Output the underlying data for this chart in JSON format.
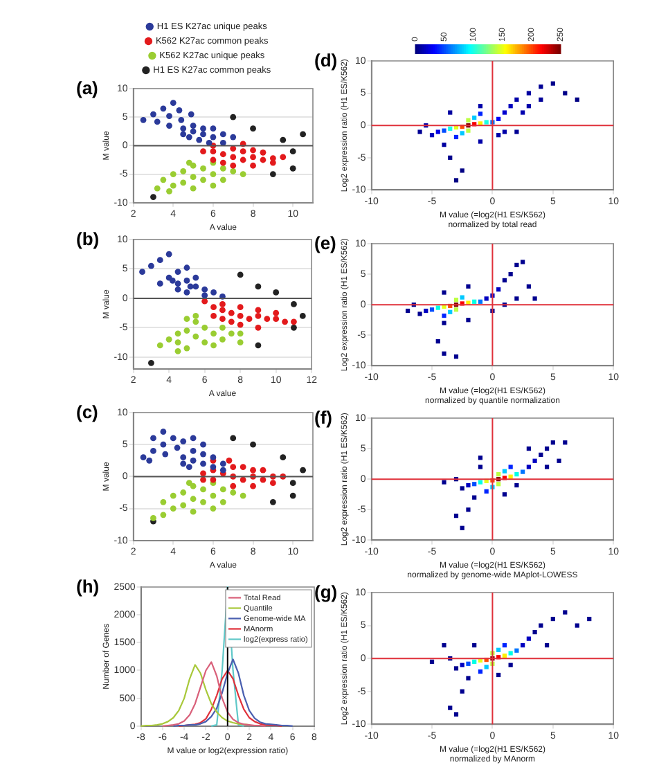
{
  "chart_data": [
    {
      "type": "scatter",
      "title": "(a)",
      "xlabel": "A value",
      "ylabel": "M value",
      "xlim": [
        2,
        11
      ],
      "xticks": [
        2,
        4,
        6,
        8,
        10
      ],
      "ylim": [
        -10,
        10
      ],
      "yticks": [
        -10,
        -5,
        0,
        5,
        10
      ],
      "grid": "y",
      "legend": "top",
      "marker": "circle",
      "ref_lines": [
        {
          "axis": "y",
          "value": 0,
          "color": "#555555"
        }
      ],
      "series": [
        {
          "name": "H1 ES K27ac unique peaks",
          "color": "#2b3a9a",
          "x": [
            2.5,
            3,
            3.5,
            4,
            3.2,
            3.8,
            4.3,
            3.8,
            4.4,
            4.9,
            4.5,
            5,
            5.5,
            5,
            5.5,
            6,
            4.8,
            5.8,
            6,
            6.5,
            6.5,
            5.3,
            7,
            4.5
          ],
          "values": [
            4.5,
            5.5,
            6.5,
            7.5,
            4.2,
            5.2,
            6.2,
            3.5,
            4.5,
            5.5,
            3,
            2.5,
            2,
            3.5,
            3,
            1.5,
            1.5,
            0.5,
            3,
            2,
            0.5,
            1,
            1.5,
            2
          ]
        },
        {
          "name": "K562 K27ac common peaks",
          "color": "#e31a1c",
          "x": [
            7,
            6.5,
            7.5,
            6,
            8,
            8.5,
            9,
            9.5,
            6,
            7,
            8,
            7,
            8,
            5.5,
            9,
            6.5,
            7.5,
            8.5,
            6,
            7.5
          ],
          "values": [
            -2,
            -1.5,
            -2.5,
            -1,
            -2,
            -2.5,
            -2.2,
            -2,
            -2.5,
            -3.5,
            -3.5,
            -0.5,
            -0.8,
            -1,
            -3,
            -3,
            -1,
            -1.2,
            0,
            0.3
          ]
        },
        {
          "name": "K562 K27ac unique peaks",
          "color": "#9acd32",
          "x": [
            5.5,
            5,
            6,
            6.5,
            4.5,
            5,
            5.5,
            6.5,
            7,
            4,
            4.5,
            5,
            3.5,
            4,
            3.8,
            6,
            4.8,
            7.5,
            6,
            3.2
          ],
          "values": [
            -4,
            -3.5,
            -5,
            -4,
            -4.5,
            -5.5,
            -6,
            -6,
            -4.5,
            -5,
            -6.5,
            -7.5,
            -6,
            -7,
            -8,
            -3,
            -3,
            -5,
            -7,
            -7.5
          ]
        },
        {
          "name": "H1 ES K27ac common peaks",
          "color": "#222222",
          "x": [
            9.5,
            10,
            10.5,
            8,
            9,
            3,
            7,
            10
          ],
          "values": [
            1,
            -1,
            2,
            3,
            -5,
            -9,
            5,
            -4
          ]
        }
      ]
    },
    {
      "type": "scatter",
      "title": "(d)",
      "xlabel": "M value (=log2(H1 ES/K562)\nnormalized by total read",
      "ylabel": "Log2 expression ratio (H1 ES/K562)",
      "xlim": [
        -10,
        10
      ],
      "xticks": [
        -10,
        -5,
        0,
        5,
        10
      ],
      "ylim": [
        -10,
        10
      ],
      "yticks": [
        -10,
        -5,
        0,
        5,
        10
      ],
      "marker": "square",
      "clim": [
        0,
        250
      ],
      "cticks": [
        0,
        50,
        100,
        150,
        200,
        250
      ],
      "ref_lines": [
        {
          "axis": "x",
          "value": 0,
          "color": "#e0303a"
        },
        {
          "axis": "y",
          "value": 0,
          "color": "#e0303a"
        }
      ],
      "series": [
        {
          "x": [
            7,
            -2.5,
            -3,
            -3.5,
            -4,
            -6,
            -5.5,
            -5,
            -4.5,
            -4,
            -3.5,
            -3,
            -2.5,
            -1,
            -1,
            1,
            2,
            0.5,
            -3.5,
            -1,
            3,
            4,
            5,
            6,
            4,
            3,
            2.5,
            2,
            1.5,
            1,
            0.5,
            0,
            -0.5,
            -1,
            -1.5,
            -2,
            -2,
            -2.5,
            -3,
            -1.5,
            -2
          ],
          "values": [
            4,
            -7,
            -8.5,
            -5,
            -3,
            -1,
            0,
            -1.5,
            -1,
            -0.8,
            -0.5,
            -1.8,
            -1.2,
            -2.5,
            3,
            -1,
            -1,
            -1.5,
            2,
            1.8,
            5,
            6,
            6.5,
            5,
            4,
            3,
            2,
            4,
            3,
            2,
            1,
            0.5,
            0.5,
            0.3,
            1.2,
            0.8,
            -0.8,
            -0.2,
            -0.3,
            0.2,
            0
          ],
          "cvalues": [
            1,
            1,
            1,
            3,
            8,
            5,
            10,
            15,
            25,
            50,
            100,
            40,
            80,
            10,
            10,
            10,
            5,
            10,
            8,
            40,
            8,
            5,
            3,
            2,
            6,
            10,
            12,
            10,
            15,
            20,
            30,
            60,
            100,
            160,
            80,
            140,
            140,
            200,
            150,
            220,
            250
          ]
        }
      ]
    },
    {
      "type": "scatter",
      "title": "(b)",
      "xlabel": "A value",
      "ylabel": "M value",
      "xlim": [
        2,
        12
      ],
      "xticks": [
        2,
        4,
        6,
        8,
        10,
        12
      ],
      "ylim": [
        -12,
        10
      ],
      "yticks": [
        -10,
        -5,
        0,
        5,
        10
      ],
      "grid": "y",
      "marker": "circle",
      "ref_lines": [
        {
          "axis": "y",
          "value": 0,
          "color": "#555555"
        }
      ],
      "series": [
        {
          "color": "#2b3a9a",
          "x": [
            2.5,
            3,
            3.5,
            4,
            3.5,
            4,
            4.5,
            5,
            4.5,
            5,
            5.5,
            4.5,
            5,
            5.5,
            6,
            6,
            6.5,
            5.2,
            4.2,
            7
          ],
          "values": [
            4.5,
            5.5,
            6.5,
            7.5,
            2.5,
            3.5,
            4.5,
            5.2,
            2.5,
            3,
            2,
            1.5,
            1,
            3.5,
            1.5,
            0.5,
            1,
            2,
            3,
            0.3
          ]
        },
        {
          "color": "#e31a1c",
          "x": [
            8,
            7.5,
            8.5,
            7,
            9,
            9.5,
            10,
            10.5,
            6.5,
            7,
            8,
            9,
            8,
            9,
            6.5,
            7.5,
            10,
            11,
            6,
            7
          ],
          "values": [
            -3,
            -2.5,
            -3.5,
            -2,
            -3,
            -3.5,
            -3.5,
            -4,
            -1.5,
            -3.5,
            -4.5,
            -5,
            -1.5,
            -2,
            -3,
            -4,
            -2.5,
            -4,
            -0.5,
            -1
          ]
        },
        {
          "color": "#9acd32",
          "x": [
            6,
            5.5,
            6.5,
            7,
            5,
            5.5,
            6,
            7,
            7.5,
            4.5,
            4.5,
            5,
            4,
            4.5,
            5.5,
            8,
            6.5,
            3.5,
            8,
            5
          ],
          "values": [
            -5,
            -4,
            -6,
            -5,
            -5.5,
            -6.5,
            -7.5,
            -7,
            -6,
            -6,
            -7.5,
            -8.5,
            -7,
            -9,
            -3,
            -6,
            -8,
            -8,
            -7.5,
            -3.5
          ]
        },
        {
          "color": "#222222",
          "x": [
            10,
            11,
            11.5,
            9,
            9,
            3,
            8,
            11
          ],
          "values": [
            1,
            -1,
            -3,
            2,
            -8,
            -11,
            4,
            -5
          ]
        }
      ]
    },
    {
      "type": "scatter",
      "title": "(e)",
      "xlabel": "M value (=log2(H1 ES/K562)\nnormalized by quantile normalization",
      "ylabel": "Log2 expression ratio (H1 ES/K562)",
      "xlim": [
        -10,
        10
      ],
      "xticks": [
        -10,
        -5,
        0,
        5,
        10
      ],
      "ylim": [
        -10,
        10
      ],
      "yticks": [
        -10,
        -5,
        0,
        5,
        10
      ],
      "marker": "square",
      "ref_lines": [
        {
          "axis": "x",
          "value": 0,
          "color": "#e0303a"
        },
        {
          "axis": "y",
          "value": 0,
          "color": "#e0303a"
        }
      ],
      "series": [
        {
          "x": [
            3.5,
            2.5,
            -4,
            -4,
            -3,
            -4.5,
            -4,
            -2,
            -4,
            -7,
            -6.5,
            -6,
            -5.5,
            -5,
            -4.5,
            -4,
            -3.5,
            -2,
            0,
            1,
            2,
            3,
            2,
            1.5,
            1,
            0.5,
            0,
            -0.5,
            -1,
            -1.5,
            -2,
            -2.5,
            -3,
            -3,
            -3.5,
            -2.5,
            -3
          ],
          "values": [
            1,
            7,
            2,
            -8,
            -8.5,
            -6,
            -3,
            -2.5,
            -1.8,
            -1,
            0,
            -1.5,
            -1,
            -0.8,
            -0.5,
            -0.3,
            -1.2,
            3,
            -1,
            0,
            1,
            3,
            6.5,
            5,
            4,
            2.5,
            1.5,
            1,
            0.5,
            0.5,
            0.3,
            1.2,
            0.8,
            -0.8,
            -0.2,
            0.2,
            0
          ],
          "colors": [
            "#00008f",
            "#00008f",
            "#00008f",
            "#00008f",
            "#00008f",
            "#00008f",
            "#00008f",
            "#00008f",
            "#0024ff",
            "#00008f",
            "#00008f",
            "#00008f",
            "#0000c0",
            "#004dff",
            "#00ffe6",
            "#e6ff1a",
            "#00c8ff",
            "#00008f",
            "#00008f",
            "#00008f",
            "#00008f",
            "#00008f",
            "#00008f",
            "#00008f",
            "#00008f",
            "#0000c0",
            "#0000c0",
            "#0000c0",
            "#0075ff",
            "#00ffe6",
            "#fff000",
            "#00c8ff",
            "#bdff42",
            "#bdff42",
            "#ff4d00",
            "#fa0000",
            "#800000"
          ]
        }
      ]
    },
    {
      "type": "scatter",
      "title": "(c)",
      "xlabel": "A value",
      "ylabel": "M value",
      "xlim": [
        2,
        11
      ],
      "xticks": [
        2,
        4,
        6,
        8,
        10
      ],
      "ylim": [
        -10,
        10
      ],
      "yticks": [
        -10,
        -5,
        0,
        5,
        10
      ],
      "grid": "y",
      "marker": "circle",
      "ref_lines": [
        {
          "axis": "y",
          "value": 0,
          "color": "#555555"
        }
      ],
      "series": [
        {
          "color": "#2b3a9a",
          "x": [
            2.5,
            3,
            3.5,
            4,
            3,
            3.5,
            2.8,
            3.6,
            4.2,
            4.5,
            4.5,
            5,
            5.5,
            5,
            5.5,
            6,
            4.8,
            6,
            6.5,
            5.5,
            5,
            6.5,
            4.5
          ],
          "values": [
            3,
            4,
            5,
            6,
            6,
            7,
            2.5,
            3.5,
            4.5,
            5.5,
            3,
            2.5,
            2,
            4,
            3.5,
            1.5,
            1.5,
            3,
            2,
            5,
            6,
            1,
            2
          ]
        },
        {
          "color": "#e31a1c",
          "x": [
            7,
            6.5,
            7.5,
            6,
            8,
            8.5,
            9,
            9.5,
            6,
            7,
            8,
            7,
            8,
            5.5,
            9,
            6.8,
            7.5,
            8.5,
            5.5,
            6
          ],
          "values": [
            0,
            0.5,
            -0.5,
            1,
            0,
            -0.5,
            0,
            0,
            -0.5,
            -1.5,
            -1.5,
            1.5,
            1,
            0.5,
            -1,
            2.5,
            1.5,
            1,
            -0.5,
            2.5
          ]
        },
        {
          "color": "#9acd32",
          "x": [
            5.5,
            5,
            6,
            6.5,
            4.5,
            5,
            5.5,
            6.5,
            7,
            4,
            4.5,
            5,
            3.5,
            4,
            3.5,
            6,
            7.5,
            6,
            3,
            4.8
          ],
          "values": [
            -2,
            -1.5,
            -3,
            -2,
            -2.5,
            -3.5,
            -4,
            -4,
            -2.5,
            -3,
            -4.5,
            -5.5,
            -4,
            -5,
            -6,
            -1,
            -3,
            -5,
            -6.5,
            -1
          ]
        },
        {
          "color": "#222222",
          "x": [
            9.5,
            10,
            10.5,
            8,
            9,
            3,
            7,
            10
          ],
          "values": [
            3,
            -1,
            1,
            5,
            -4,
            -7,
            6,
            -3
          ]
        }
      ]
    },
    {
      "type": "scatter",
      "title": "(f)",
      "xlabel": "M value (=log2(H1 ES/K562)\nnormalized by genome-wide MAplot-LOWESS",
      "ylabel": "Log2 expression ratio (H1 ES/K562)",
      "xlim": [
        -10,
        10
      ],
      "xticks": [
        -10,
        -5,
        0,
        5,
        10
      ],
      "ylim": [
        -10,
        10
      ],
      "yticks": [
        -10,
        -5,
        0,
        5,
        10
      ],
      "marker": "square",
      "ref_lines": [
        {
          "axis": "x",
          "value": 0,
          "color": "#e0303a"
        },
        {
          "axis": "y",
          "value": 0,
          "color": "#e0303a"
        }
      ],
      "series": [
        {
          "x": [
            -1,
            5.5,
            6,
            -2.5,
            -3,
            -2,
            -1.5,
            -1,
            1,
            2,
            4.5,
            3,
            5,
            4.5,
            4,
            3.5,
            -4,
            -3,
            -2.5,
            -2,
            3,
            -0.5,
            1.5,
            -1.5,
            2.5,
            0,
            1,
            -1,
            2,
            0.5,
            0.5,
            -0.5,
            1.5,
            0,
            1,
            0.5
          ],
          "values": [
            3.5,
            3,
            6,
            -8,
            -6,
            -5,
            -3,
            2,
            -2.5,
            -1,
            2,
            5,
            6,
            5,
            4,
            3,
            -0.5,
            0,
            -1.5,
            -1,
            2,
            -2,
            2,
            -0.8,
            1.2,
            -1.3,
            1.3,
            -0.5,
            0.8,
            -0.8,
            0.8,
            -0.3,
            0.4,
            -0.2,
            0.2,
            0
          ],
          "colors": [
            "#00008f",
            "#00008f",
            "#00008f",
            "#00008f",
            "#00008f",
            "#00008f",
            "#00008f",
            "#00008f",
            "#00008f",
            "#00008f",
            "#00008f",
            "#00008f",
            "#00008f",
            "#00008f",
            "#00008f",
            "#0000c0",
            "#00008f",
            "#00008f",
            "#00008f",
            "#0000c0",
            "#0000c0",
            "#0024ff",
            "#0024ff",
            "#004dff",
            "#0075ff",
            "#00c8ff",
            "#00c8ff",
            "#00ffe6",
            "#00ffe6",
            "#bdff42",
            "#bdff42",
            "#e6ff1a",
            "#fff000",
            "#ff4d00",
            "#fa0000",
            "#800000"
          ]
        }
      ]
    },
    {
      "type": "line",
      "title": "(h)",
      "xlabel": "M value or log2(expression ratio)",
      "ylabel": "Number of Genes",
      "xlim": [
        -8,
        8
      ],
      "xticks": [
        -8,
        -6,
        -4,
        -2,
        0,
        2,
        4,
        6,
        8
      ],
      "ylim": [
        0,
        2500
      ],
      "yticks": [
        0,
        500,
        1000,
        1500,
        2000,
        2500
      ],
      "legend": "top right",
      "marker": "none",
      "line_style": "solid",
      "ref_lines": [
        {
          "axis": "x",
          "value": 0,
          "color": "#000000"
        }
      ],
      "x": [
        -8,
        -7.5,
        -7,
        -6.5,
        -6,
        -5.5,
        -5,
        -4.5,
        -4,
        -3.5,
        -3,
        -2.5,
        -2,
        -1.5,
        -1,
        -0.5,
        0,
        0.5,
        1,
        1.5,
        2,
        2.5,
        3,
        3.5,
        4,
        4.5,
        5,
        5.5,
        6
      ],
      "series": [
        {
          "name": "Total Read",
          "color": "#d9607a",
          "values": [
            null,
            null,
            null,
            null,
            0,
            10,
            20,
            40,
            90,
            200,
            400,
            700,
            1000,
            1150,
            900,
            500,
            250,
            120,
            60,
            30,
            20,
            10,
            10,
            0,
            null,
            null,
            null,
            null,
            null
          ]
        },
        {
          "name": "Quantile",
          "color": "#a8c83a",
          "values": [
            0,
            10,
            10,
            20,
            40,
            80,
            150,
            280,
            500,
            850,
            1100,
            950,
            650,
            400,
            250,
            150,
            90,
            60,
            40,
            30,
            20,
            null,
            null,
            null,
            null,
            null,
            null,
            null,
            null
          ]
        },
        {
          "name": "Genome-wide MA",
          "color": "#4a5fb0",
          "values": [
            null,
            null,
            null,
            null,
            null,
            null,
            0,
            10,
            10,
            20,
            20,
            40,
            80,
            170,
            320,
            600,
            950,
            1200,
            950,
            550,
            280,
            140,
            70,
            40,
            30,
            20,
            10,
            10,
            0
          ]
        },
        {
          "name": "MAnorm",
          "color": "#e0303a",
          "values": [
            null,
            null,
            null,
            null,
            null,
            null,
            null,
            0,
            10,
            20,
            30,
            60,
            130,
            300,
            550,
            850,
            1000,
            850,
            550,
            300,
            150,
            80,
            40,
            20,
            10,
            10,
            0,
            null,
            null
          ]
        },
        {
          "name": "log2(express ratio)",
          "color": "#5fc8c8",
          "values": [
            null,
            null,
            null,
            null,
            null,
            null,
            null,
            null,
            null,
            null,
            null,
            null,
            null,
            0,
            20,
            1000,
            2500,
            1000,
            20,
            0,
            null,
            null,
            null,
            null,
            null,
            null,
            null,
            null,
            null
          ]
        }
      ]
    },
    {
      "type": "scatter",
      "title": "(g)",
      "xlabel": "M value (=log2(H1 ES/K562)\nnormalized by MAnorm",
      "ylabel": "Log2 expression ratio (H1 ES/K562)",
      "xlim": [
        -10,
        10
      ],
      "xticks": [
        -10,
        -5,
        0,
        5,
        10
      ],
      "ylim": [
        -10,
        10
      ],
      "yticks": [
        -10,
        -5,
        0,
        5,
        10
      ],
      "marker": "square",
      "ref_lines": [
        {
          "axis": "x",
          "value": 0,
          "color": "#e0303a"
        },
        {
          "axis": "y",
          "value": 0,
          "color": "#e0303a"
        }
      ],
      "series": [
        {
          "x": [
            8,
            -4,
            -3,
            -3.5,
            -2.5,
            -2,
            -5,
            -3.5,
            -3,
            -2.5,
            6,
            7,
            5,
            4,
            3.5,
            3,
            4.5,
            1.5,
            0.5,
            -1.5,
            2.5,
            -1,
            1,
            -2,
            2,
            -0.5,
            0.5,
            -1.5,
            1.5,
            0,
            0,
            -1,
            1,
            -0.5,
            0.5,
            0
          ],
          "values": [
            6,
            2,
            -8.5,
            -7.5,
            -5,
            -3,
            -0.5,
            0,
            -1.5,
            -1,
            7,
            5,
            6,
            5,
            4,
            3,
            2,
            -1,
            -2.5,
            2,
            2,
            -2,
            2,
            -0.8,
            1.2,
            -1.3,
            1.3,
            -0.5,
            0.8,
            -0.8,
            0.8,
            -0.3,
            0.4,
            -0.2,
            0.2,
            0
          ],
          "colors": [
            "#00008f",
            "#00008f",
            "#00008f",
            "#00008f",
            "#00008f",
            "#00008f",
            "#00008f",
            "#00008f",
            "#00008f",
            "#0000c0",
            "#00008f",
            "#00008f",
            "#00008f",
            "#00008f",
            "#00008f",
            "#0000c0",
            "#00008f",
            "#00008f",
            "#00008f",
            "#00008f",
            "#0000c0",
            "#0024ff",
            "#0024ff",
            "#004dff",
            "#0075ff",
            "#00c8ff",
            "#00c8ff",
            "#00ffe6",
            "#00ffe6",
            "#bdff42",
            "#bdff42",
            "#e6ff1a",
            "#fff000",
            "#ff4d00",
            "#fa0000",
            "#800000"
          ]
        }
      ]
    }
  ]
}
